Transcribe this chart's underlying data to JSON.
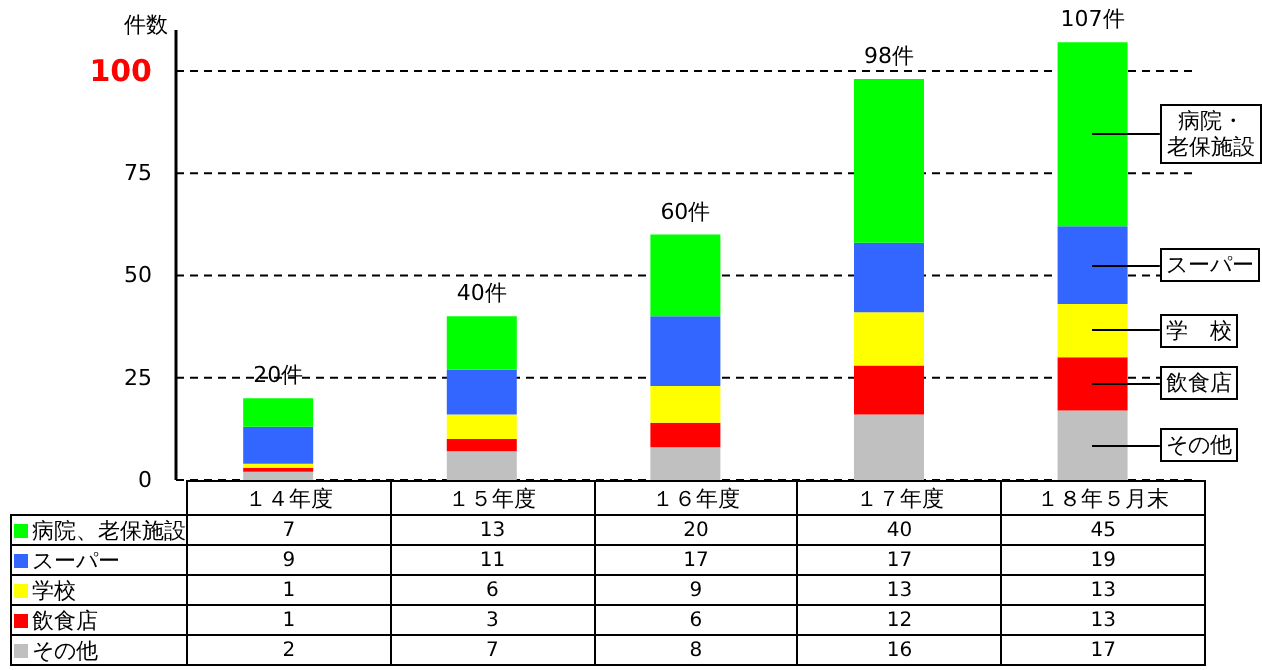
{
  "chart_data": {
    "type": "bar",
    "stacked": true,
    "ylabel": "件数",
    "categories": [
      "１４年度",
      "１５年度",
      "１６年度",
      "１７年度",
      "１８年５月末"
    ],
    "series": [
      {
        "name": "その他",
        "color": "#c0c0c0",
        "values": [
          2,
          7,
          8,
          16,
          17
        ]
      },
      {
        "name": "飲食店",
        "color": "#ff0000",
        "values": [
          1,
          3,
          6,
          12,
          13
        ]
      },
      {
        "name": "学校",
        "color": "#ffff00",
        "values": [
          1,
          6,
          9,
          13,
          13
        ]
      },
      {
        "name": "スーパー",
        "color": "#3366ff",
        "values": [
          9,
          11,
          17,
          17,
          19
        ]
      },
      {
        "name": "病院、老保施設",
        "color": "#00ff00",
        "values": [
          7,
          13,
          20,
          40,
          45
        ]
      }
    ],
    "totals": [
      "20件",
      "40件",
      "60件",
      "98件",
      "107件"
    ],
    "ylim": [
      0,
      110
    ],
    "yticks": [
      0,
      25,
      50,
      75,
      100
    ],
    "grid": "y",
    "legend": "bottom",
    "data_labels": true,
    "annotations": [
      "病院・老保施設",
      "スーパー",
      "学　校",
      "飲食店",
      "その他"
    ]
  }
}
